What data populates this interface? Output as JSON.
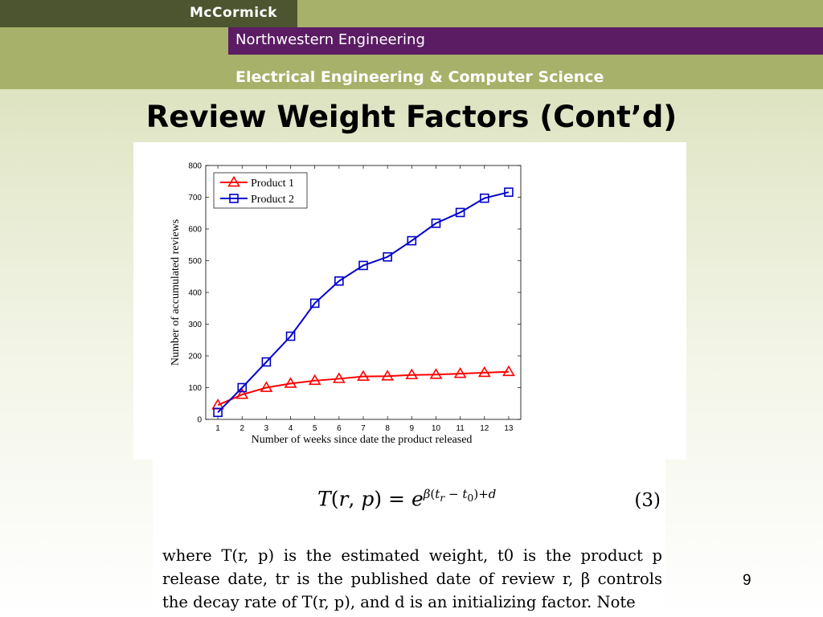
{
  "header": {
    "brand": "McCormick",
    "school": "Northwestern Engineering",
    "department": "Electrical Engineering & Computer Science"
  },
  "slide": {
    "title": "Review Weight Factors (Cont’d)",
    "page_number": "9"
  },
  "paper": {
    "equation": "T(r, p) = e^{β(t_r − t_0)+d}",
    "equation_number": "(3)",
    "text": "where T(r, p) is the estimated weight, t0 is the product p release date, tr is the published date of review r, β controls the decay rate of T(r, p), and d is an initializing factor. Note"
  },
  "colors": {
    "banner_green": "#a7b169",
    "logo_dark": "#4d5530",
    "northwestern_purple": "#5b1c64"
  },
  "chart_data": {
    "type": "line",
    "title": "",
    "xlabel": "Number of weeks since date the product released",
    "ylabel": "Number of accumulated reviews",
    "x": [
      1,
      2,
      3,
      4,
      5,
      6,
      7,
      8,
      9,
      10,
      11,
      12,
      13
    ],
    "xlim": [
      0.5,
      13.5
    ],
    "ylim": [
      0,
      800
    ],
    "yticks": [
      0,
      100,
      200,
      300,
      400,
      500,
      600,
      700,
      800
    ],
    "legend_position": "top-left",
    "grid": false,
    "series": [
      {
        "name": "Product 1",
        "color": "#ff0000",
        "marker": "triangle",
        "values": [
          45,
          78,
          100,
          113,
          122,
          128,
          135,
          136,
          140,
          141,
          144,
          147,
          150
        ]
      },
      {
        "name": "Product 2",
        "color": "#0000cc",
        "marker": "square",
        "values": [
          22,
          100,
          181,
          262,
          366,
          436,
          485,
          512,
          563,
          618,
          652,
          697,
          716
        ]
      }
    ]
  }
}
